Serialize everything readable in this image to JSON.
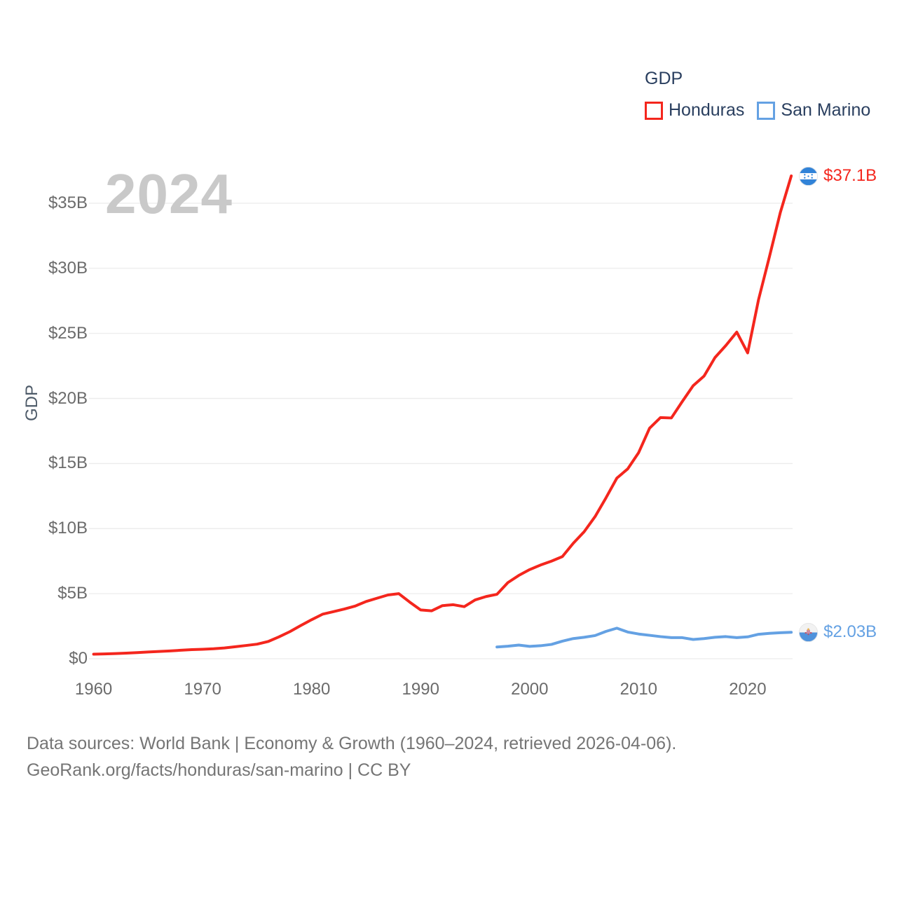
{
  "watermark": "2024",
  "legend": {
    "title": "GDP"
  },
  "axis": {
    "y_title": "GDP"
  },
  "footer": {
    "line1": "Data sources: World Bank | Economy & Growth (1960–2024, retrieved 2026-04-06).",
    "line2": "GeoRank.org/facts/honduras/san-marino | CC BY"
  },
  "colors": {
    "honduras": "#f4261d",
    "san_marino": "#64a1e3",
    "gridline": "#ececec",
    "tick_text": "#6b6b6b",
    "legend_text": "#2a3f5f",
    "watermark": "#c9c9c9"
  },
  "chart_data": {
    "type": "line",
    "title": "GDP",
    "xlabel": "",
    "ylabel": "GDP",
    "xlim": [
      1959.9,
      2024.2
    ],
    "ylim": [
      0,
      37.5
    ],
    "grid": "horizontal-only",
    "legend_position": "top-right",
    "x_ticks": [
      {
        "v": 1960,
        "label": "1960"
      },
      {
        "v": 1970,
        "label": "1970"
      },
      {
        "v": 1980,
        "label": "1980"
      },
      {
        "v": 1990,
        "label": "1990"
      },
      {
        "v": 2000,
        "label": "2000"
      },
      {
        "v": 2010,
        "label": "2010"
      },
      {
        "v": 2020,
        "label": "2020"
      }
    ],
    "y_ticks": [
      {
        "v": 0,
        "label": "$0"
      },
      {
        "v": 5,
        "label": "$5B"
      },
      {
        "v": 10,
        "label": "$10B"
      },
      {
        "v": 15,
        "label": "$15B"
      },
      {
        "v": 20,
        "label": "$20B"
      },
      {
        "v": 25,
        "label": "$25B"
      },
      {
        "v": 30,
        "label": "$30B"
      },
      {
        "v": 35,
        "label": "$35B"
      }
    ],
    "series": [
      {
        "name": "Honduras",
        "color": "#f4261d",
        "end_label": "$37.1B",
        "units": "billions USD",
        "x": [
          1960,
          1961,
          1962,
          1963,
          1964,
          1965,
          1966,
          1967,
          1968,
          1969,
          1970,
          1971,
          1972,
          1973,
          1974,
          1975,
          1976,
          1977,
          1978,
          1979,
          1980,
          1981,
          1982,
          1983,
          1984,
          1985,
          1986,
          1987,
          1988,
          1989,
          1990,
          1991,
          1992,
          1993,
          1994,
          1995,
          1996,
          1997,
          1998,
          1999,
          2000,
          2001,
          2002,
          2003,
          2004,
          2005,
          2006,
          2007,
          2008,
          2009,
          2010,
          2011,
          2012,
          2013,
          2014,
          2015,
          2016,
          2017,
          2018,
          2019,
          2020,
          2021,
          2022,
          2023,
          2024
        ],
        "values": [
          0.35,
          0.37,
          0.4,
          0.43,
          0.47,
          0.52,
          0.56,
          0.6,
          0.65,
          0.7,
          0.73,
          0.77,
          0.83,
          0.92,
          1.02,
          1.12,
          1.32,
          1.68,
          2.08,
          2.55,
          3.0,
          3.42,
          3.62,
          3.82,
          4.05,
          4.4,
          4.65,
          4.9,
          5.0,
          4.35,
          3.75,
          3.68,
          4.08,
          4.15,
          4.0,
          4.52,
          4.78,
          4.95,
          5.85,
          6.4,
          6.85,
          7.2,
          7.5,
          7.85,
          8.87,
          9.76,
          10.92,
          12.36,
          13.88,
          14.59,
          15.84,
          17.71,
          18.53,
          18.5,
          19.76,
          20.98,
          21.72,
          23.14,
          24.07,
          25.1,
          23.5,
          27.6,
          30.9,
          34.3,
          37.1
        ]
      },
      {
        "name": "San Marino",
        "color": "#64a1e3",
        "end_label": "$2.03B",
        "units": "billions USD",
        "x": [
          1997,
          1998,
          1999,
          2000,
          2001,
          2002,
          2003,
          2004,
          2005,
          2006,
          2007,
          2008,
          2009,
          2010,
          2011,
          2012,
          2013,
          2014,
          2015,
          2016,
          2017,
          2018,
          2019,
          2020,
          2021,
          2022,
          2023,
          2024
        ],
        "values": [
          0.9,
          0.96,
          1.05,
          0.95,
          1.0,
          1.1,
          1.35,
          1.55,
          1.65,
          1.78,
          2.1,
          2.35,
          2.05,
          1.9,
          1.8,
          1.7,
          1.62,
          1.62,
          1.48,
          1.55,
          1.65,
          1.7,
          1.62,
          1.68,
          1.88,
          1.95,
          2.0,
          2.03
        ]
      }
    ]
  }
}
